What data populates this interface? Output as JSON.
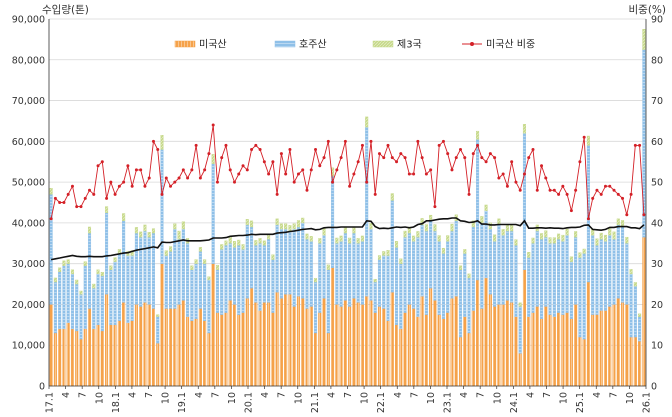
{
  "chart_data": {
    "type": "bar",
    "y_left_title": "수입량(톤)",
    "y_right_title": "비중(%)",
    "ylim_left": [
      0,
      90000
    ],
    "ylim_right": [
      0,
      90
    ],
    "y_left_ticks": [
      "0",
      "10,000",
      "20,000",
      "30,000",
      "40,000",
      "50,000",
      "60,000",
      "70,000",
      "80,000",
      "90,000"
    ],
    "y_right_ticks": [
      "0",
      "10",
      "20",
      "30",
      "40",
      "50",
      "60",
      "70",
      "80",
      "90"
    ],
    "grid": true,
    "legend_position": "top",
    "x_labels": [
      "17.1",
      "4",
      "7",
      "10",
      "18.1",
      "4",
      "7",
      "10",
      "19.1",
      "4",
      "7",
      "10",
      "20.1",
      "4",
      "7",
      "10",
      "21.1",
      "4",
      "7",
      "10",
      "22.1",
      "4",
      "7",
      "10",
      "23.1",
      "4",
      "7",
      "10",
      "24.1",
      "4",
      "7",
      "10",
      "25.1",
      "4",
      "7",
      "10",
      "26.1"
    ],
    "legend": [
      {
        "key": "us",
        "label": "미국산"
      },
      {
        "key": "au",
        "label": "호주산"
      },
      {
        "key": "other",
        "label": "제3국"
      },
      {
        "key": "share",
        "label": "미국산 비중"
      }
    ],
    "colors": {
      "us": "#f5a24a",
      "au": "#8fc0e8",
      "other": "#c6d98a",
      "share": "#d42027",
      "trend": "#111111",
      "grid": "#d8d8d8"
    },
    "series": [
      {
        "name": "미국산",
        "values": [
          20000,
          13000,
          14000,
          14000,
          15500,
          14000,
          13500,
          11500,
          14000,
          19000,
          14000,
          15000,
          13500,
          22500,
          15000,
          15000,
          16000,
          20500,
          15500,
          16000,
          20000,
          19500,
          20500,
          20000,
          19000,
          10500,
          30000,
          19000,
          19000,
          19000,
          20000,
          21000,
          17000,
          16000,
          16500,
          19000,
          16000,
          13000,
          30000,
          18000,
          17500,
          18000,
          21000,
          20000,
          17500,
          18000,
          21500,
          24000,
          20500,
          18500,
          20500,
          20500,
          18000,
          23000,
          21500,
          22500,
          22500,
          19500,
          22000,
          21500,
          19000,
          19500,
          13000,
          18000,
          21500,
          13000,
          29000,
          20000,
          19500,
          21000,
          19500,
          21500,
          20500,
          20000,
          22000,
          21000,
          18000,
          19500,
          19000,
          16000,
          23000,
          15000,
          14000,
          18000,
          20000,
          19000,
          17000,
          22000,
          17500,
          24000,
          21000,
          17500,
          16500,
          18000,
          21500,
          22000,
          12000,
          17000,
          13000,
          18500,
          26000,
          19000,
          26500,
          22500,
          19500,
          20000,
          20000,
          21000,
          20500,
          17000,
          8000,
          28500,
          17000,
          18000,
          19500,
          16500,
          19500,
          17500,
          17000,
          18000,
          17500,
          18000,
          16500,
          20000,
          12000,
          11500,
          25500,
          17500,
          17500,
          18500,
          18500,
          19500,
          20000,
          21500,
          20500,
          20000,
          12000,
          12000,
          11000,
          36500
        ]
      },
      {
        "name": "호주산",
        "values": [
          27000,
          12500,
          14000,
          15500,
          14500,
          13500,
          11500,
          11000,
          15500,
          18500,
          10000,
          12500,
          13500,
          20000,
          13500,
          15500,
          16500,
          20000,
          16500,
          16000,
          17500,
          17000,
          17500,
          16500,
          18500,
          6500,
          28000,
          13000,
          14000,
          19500,
          16000,
          17500,
          18000,
          12500,
          13500,
          14000,
          14000,
          13000,
          24500,
          10500,
          16000,
          16500,
          14000,
          14000,
          17000,
          15500,
          18000,
          15000,
          14000,
          16500,
          14000,
          15500,
          13000,
          16500,
          17000,
          16000,
          15500,
          19000,
          17000,
          18500,
          17000,
          16000,
          12500,
          17000,
          15500,
          15500,
          22500,
          15000,
          16000,
          16500,
          15500,
          16000,
          14500,
          15500,
          41500,
          17500,
          7500,
          11500,
          13000,
          16000,
          22500,
          19000,
          16000,
          18500,
          17500,
          16500,
          19500,
          17500,
          20500,
          16500,
          17000,
          18000,
          16000,
          17500,
          16500,
          18500,
          16500,
          15500,
          13500,
          20500,
          34500,
          21000,
          16500,
          16000,
          16000,
          19500,
          17000,
          17000,
          17500,
          17500,
          11500,
          33500,
          14500,
          17000,
          18500,
          19500,
          17000,
          17500,
          18000,
          18000,
          18000,
          19000,
          14000,
          16500,
          19500,
          21000,
          33500,
          19500,
          17000,
          17500,
          17000,
          17500,
          16000,
          18000,
          18500,
          15000,
          15500,
          12500,
          6000,
          46000
        ]
      },
      {
        "name": "제3국",
        "values": [
          1500,
          1000,
          1000,
          1200,
          1000,
          1000,
          1000,
          800,
          1000,
          1500,
          1000,
          1000,
          900,
          1500,
          1000,
          1000,
          1000,
          1800,
          1000,
          1200,
          1400,
          1300,
          1500,
          1200,
          1100,
          500,
          3500,
          1200,
          1200,
          1300,
          2000,
          1800,
          1200,
          1000,
          1000,
          1000,
          1000,
          800,
          2300,
          1100,
          1200,
          1100,
          1600,
          1500,
          1300,
          1200,
          1400,
          1500,
          1200,
          1200,
          1100,
          1200,
          1200,
          1500,
          1300,
          1300,
          1400,
          1300,
          1600,
          1200,
          1300,
          1200,
          900,
          1200,
          1600,
          1200,
          2000,
          1300,
          1300,
          1300,
          1300,
          1300,
          1200,
          1300,
          2500,
          1400,
          700,
          1000,
          1000,
          1300,
          1700,
          1500,
          1200,
          1500,
          1500,
          1300,
          1400,
          1600,
          1600,
          1400,
          1600,
          1400,
          1300,
          1400,
          1700,
          1500,
          1000,
          1000,
          1000,
          1500,
          2000,
          1600,
          1400,
          1500,
          1600,
          1500,
          1400,
          1500,
          1500,
          1400,
          900,
          2200,
          1300,
          1300,
          1500,
          1400,
          1600,
          1400,
          1400,
          1300,
          1500,
          1500,
          1200,
          1400,
          1200,
          1100,
          2300,
          1500,
          1600,
          1500,
          1500,
          1600,
          1800,
          1500,
          1600,
          1500,
          1100,
          900,
          700,
          5000
        ]
      },
      {
        "name": "미국산 비중",
        "values": [
          41,
          46,
          45,
          45,
          47,
          49,
          44,
          44,
          46,
          48,
          47,
          54,
          55,
          46,
          50,
          47,
          49,
          50,
          54,
          49,
          53,
          53,
          49,
          51,
          60,
          58,
          47,
          51,
          49,
          50,
          51,
          53,
          51,
          53,
          59,
          51,
          53,
          57,
          64,
          50,
          56,
          59,
          53,
          50,
          52,
          54,
          53,
          58,
          59,
          58,
          55,
          52,
          55,
          47,
          57,
          52,
          58,
          50,
          52,
          53,
          48,
          53,
          58,
          54,
          56,
          60,
          50,
          53,
          56,
          60,
          49,
          52,
          55,
          59,
          50,
          60,
          47,
          57,
          56,
          59,
          56,
          55,
          57,
          56,
          52,
          52,
          60,
          56,
          52,
          53,
          44,
          59,
          60,
          57,
          53,
          56,
          58,
          56,
          47,
          57,
          59,
          56,
          55,
          57,
          56,
          51,
          52,
          49,
          55,
          50,
          48,
          52,
          56,
          58,
          48,
          54,
          51,
          48,
          48,
          47,
          49,
          47,
          43,
          48,
          55,
          61,
          41,
          46,
          48,
          47,
          49,
          49,
          48,
          47,
          46,
          42,
          47,
          59,
          59,
          42
        ]
      },
      {
        "name": "",
        "values": [
          31000,
          31200,
          31400,
          31600,
          31800,
          32000,
          31800,
          31700,
          31700,
          31800,
          31700,
          31700,
          31700,
          31900,
          32000,
          32200,
          32400,
          32600,
          32700,
          33000,
          33300,
          33500,
          33700,
          33900,
          34100,
          33900,
          35300,
          35200,
          35200,
          35400,
          35600,
          35800,
          35600,
          35600,
          35600,
          35600,
          35700,
          35800,
          36300,
          36300,
          36300,
          36400,
          36700,
          36800,
          36900,
          36900,
          37000,
          37200,
          37100,
          37200,
          37200,
          37200,
          37200,
          37500,
          37600,
          37700,
          37900,
          38000,
          38200,
          38400,
          38500,
          38600,
          38300,
          38400,
          38800,
          38900,
          38900,
          38900,
          39000,
          39000,
          39000,
          39000,
          39000,
          39000,
          40500,
          40400,
          39100,
          38600,
          38700,
          38600,
          38800,
          39000,
          38900,
          39000,
          38800,
          39000,
          39600,
          39800,
          40500,
          40500,
          40700,
          40900,
          41000,
          41000,
          41200,
          41200,
          40500,
          40400,
          40100,
          40200,
          40500,
          39700,
          39700,
          39500,
          39500,
          39600,
          39600,
          39600,
          39600,
          39600,
          39300,
          40500,
          38700,
          38700,
          38800,
          38800,
          38700,
          38800,
          38700,
          38700,
          38600,
          38800,
          38900,
          38900,
          39000,
          39400,
          39500,
          38400,
          38300,
          38200,
          38400,
          38900,
          38900,
          39100,
          39100,
          39100,
          38800,
          38800,
          38600,
          39500
        ]
      }
    ]
  }
}
